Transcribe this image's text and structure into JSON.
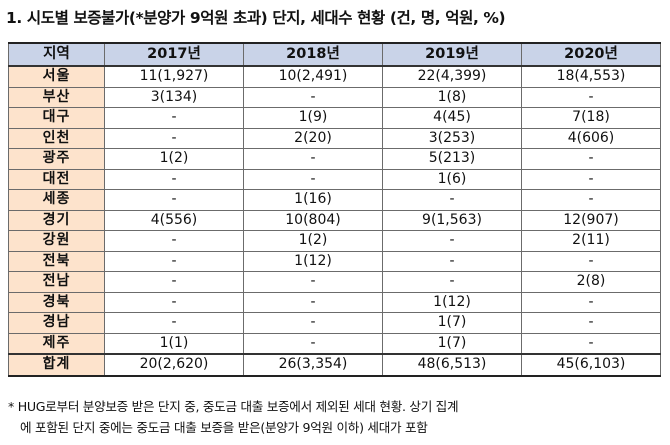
{
  "title": "1. 시도별 보증불가(*분양가 9억원 초과) 단지, 세대수 현황 (건, 명, 억원, %)",
  "table": {
    "headers": [
      "지역",
      "2017년",
      "2018년",
      "2019년",
      "2020년"
    ],
    "rows": [
      {
        "region": "서울",
        "values": [
          "11(1,927)",
          "10(2,491)",
          "22(4,399)",
          "18(4,553)"
        ]
      },
      {
        "region": "부산",
        "values": [
          "3(134)",
          "-",
          "1(8)",
          "-"
        ]
      },
      {
        "region": "대구",
        "values": [
          "-",
          "1(9)",
          "4(45)",
          "7(18)"
        ]
      },
      {
        "region": "인천",
        "values": [
          "-",
          "2(20)",
          "3(253)",
          "4(606)"
        ]
      },
      {
        "region": "광주",
        "values": [
          "1(2)",
          "-",
          "5(213)",
          "-"
        ]
      },
      {
        "region": "대전",
        "values": [
          "-",
          "-",
          "1(6)",
          "-"
        ]
      },
      {
        "region": "세종",
        "values": [
          "-",
          "1(16)",
          "-",
          "-"
        ]
      },
      {
        "region": "경기",
        "values": [
          "4(556)",
          "10(804)",
          "9(1,563)",
          "12(907)"
        ]
      },
      {
        "region": "강원",
        "values": [
          "-",
          "1(2)",
          "-",
          "2(11)"
        ]
      },
      {
        "region": "전북",
        "values": [
          "-",
          "1(12)",
          "-",
          "-"
        ]
      },
      {
        "region": "전남",
        "values": [
          "-",
          "-",
          "-",
          "2(8)"
        ]
      },
      {
        "region": "경북",
        "values": [
          "-",
          "-",
          "1(12)",
          "-"
        ]
      },
      {
        "region": "경남",
        "values": [
          "-",
          "-",
          "1(7)",
          "-"
        ]
      },
      {
        "region": "제주",
        "values": [
          "1(1)",
          "-",
          "1(7)",
          "-"
        ]
      }
    ],
    "total": {
      "region": "합계",
      "values": [
        "20(2,620)",
        "26(3,354)",
        "48(6,513)",
        "45(6,103)"
      ]
    }
  },
  "note": {
    "line1": "* HUG로부터 분양보증 받은 단지 중, 중도금 대출 보증에서 제외된 세대 현황. 상기 집계",
    "line2": "에 포함된 단지 중에는 중도금 대출 보증을 받은(분양가 9억원 이하) 세대가 포함"
  },
  "colors": {
    "header_bg": "#c9d3e8",
    "region_bg": "#fde3cc",
    "border": "#6b6b6b"
  }
}
